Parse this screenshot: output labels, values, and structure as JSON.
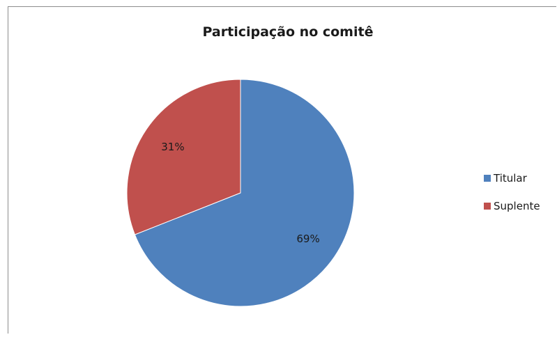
{
  "chart_data": {
    "type": "pie",
    "title": "Participação no comitê",
    "categories": [
      "Titular",
      "Suplente"
    ],
    "values": [
      69,
      31
    ],
    "data_labels": [
      "69%",
      "31%"
    ],
    "colors": [
      "#4f81bd",
      "#c0504d"
    ],
    "legend_position": "right",
    "start_angle": "12 o'clock",
    "direction": "clockwise"
  }
}
